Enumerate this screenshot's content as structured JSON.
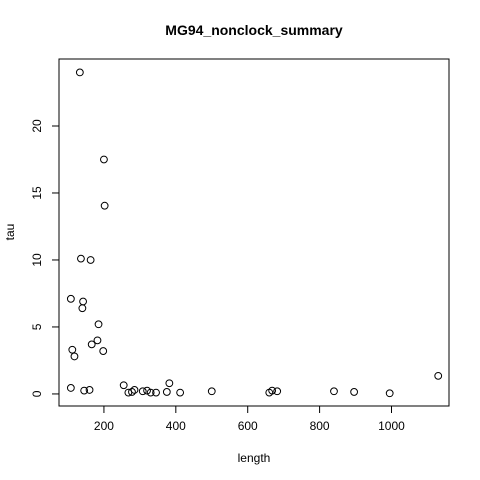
{
  "chart_data": {
    "type": "scatter",
    "title": "MG94_nonclock_summary",
    "xlabel": "length",
    "ylabel": "tau",
    "xlim": [
      75,
      1160
    ],
    "ylim": [
      -0.9,
      25
    ],
    "xticks": [
      200,
      400,
      600,
      800,
      1000
    ],
    "yticks": [
      0,
      5,
      10,
      15,
      20
    ],
    "grid": false,
    "legend": "none",
    "points": [
      {
        "x": 108,
        "y": 7.1
      },
      {
        "x": 108,
        "y": 0.45
      },
      {
        "x": 112,
        "y": 3.3
      },
      {
        "x": 118,
        "y": 2.8
      },
      {
        "x": 133,
        "y": 24.0
      },
      {
        "x": 136,
        "y": 10.1
      },
      {
        "x": 140,
        "y": 6.4
      },
      {
        "x": 142,
        "y": 6.9
      },
      {
        "x": 145,
        "y": 0.25
      },
      {
        "x": 160,
        "y": 0.3
      },
      {
        "x": 163,
        "y": 10.0
      },
      {
        "x": 166,
        "y": 3.7
      },
      {
        "x": 182,
        "y": 4.0
      },
      {
        "x": 185,
        "y": 5.2
      },
      {
        "x": 198,
        "y": 3.2
      },
      {
        "x": 200,
        "y": 17.5
      },
      {
        "x": 202,
        "y": 14.05
      },
      {
        "x": 255,
        "y": 0.65
      },
      {
        "x": 268,
        "y": 0.1
      },
      {
        "x": 278,
        "y": 0.15
      },
      {
        "x": 285,
        "y": 0.3
      },
      {
        "x": 308,
        "y": 0.2
      },
      {
        "x": 320,
        "y": 0.25
      },
      {
        "x": 330,
        "y": 0.1
      },
      {
        "x": 345,
        "y": 0.1
      },
      {
        "x": 375,
        "y": 0.15
      },
      {
        "x": 382,
        "y": 0.8
      },
      {
        "x": 412,
        "y": 0.1
      },
      {
        "x": 500,
        "y": 0.2
      },
      {
        "x": 660,
        "y": 0.1
      },
      {
        "x": 668,
        "y": 0.25
      },
      {
        "x": 682,
        "y": 0.2
      },
      {
        "x": 840,
        "y": 0.2
      },
      {
        "x": 896,
        "y": 0.15
      },
      {
        "x": 995,
        "y": 0.05
      },
      {
        "x": 1130,
        "y": 1.35
      }
    ]
  }
}
